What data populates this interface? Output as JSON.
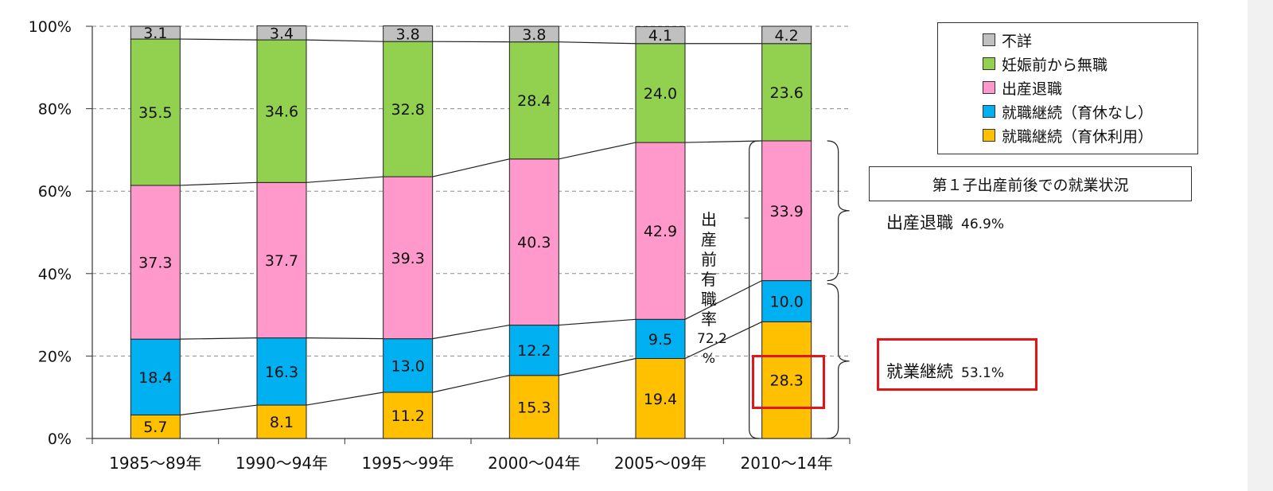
{
  "chart_data": {
    "type": "bar",
    "stacked": true,
    "categories": [
      "1985〜89年",
      "1990〜94年",
      "1995〜99年",
      "2000〜04年",
      "2005〜09年",
      "2010〜14年"
    ],
    "series": [
      {
        "name": "就職継続（育休利用）",
        "color": "#ffc000",
        "values": [
          5.7,
          8.1,
          11.2,
          15.3,
          19.4,
          28.3
        ]
      },
      {
        "name": "就職継続（育休なし）",
        "color": "#00b0f0",
        "values": [
          18.4,
          16.3,
          13.0,
          12.2,
          9.5,
          10.0
        ]
      },
      {
        "name": "出産退職",
        "color": "#ff99cc",
        "values": [
          37.3,
          37.7,
          39.3,
          40.3,
          42.9,
          33.9
        ]
      },
      {
        "name": "妊娠前から無職",
        "color": "#92d050",
        "values": [
          35.5,
          34.6,
          32.8,
          28.4,
          24.0,
          23.6
        ]
      },
      {
        "name": "不詳",
        "color": "#c0c0c0",
        "values": [
          3.1,
          3.4,
          3.8,
          3.8,
          4.1,
          4.2
        ]
      }
    ],
    "yticks": [
      "0%",
      "20%",
      "40%",
      "60%",
      "80%",
      "100%"
    ],
    "ylim": [
      0,
      100
    ],
    "grid": true,
    "legend_position": "top-right"
  },
  "legend": {
    "items": [
      {
        "label": "不詳",
        "color": "#c0c0c0"
      },
      {
        "label": "妊娠前から無職",
        "color": "#92d050"
      },
      {
        "label": "出産退職",
        "color": "#ff99cc"
      },
      {
        "label": "就職継続（育休なし）",
        "color": "#00b0f0"
      },
      {
        "label": "就職継続（育休利用）",
        "color": "#ffc000"
      }
    ]
  },
  "annotations": {
    "caption": "第１子出産前後での就業状況",
    "leave_label": "出産退職",
    "leave_pct": "46.9%",
    "continue_label": "就業継続",
    "continue_pct": "53.1%",
    "prework_label": "出産前有職率",
    "prework_value": "72.2",
    "prework_unit": "%",
    "highlight_color": "#e3151a"
  }
}
